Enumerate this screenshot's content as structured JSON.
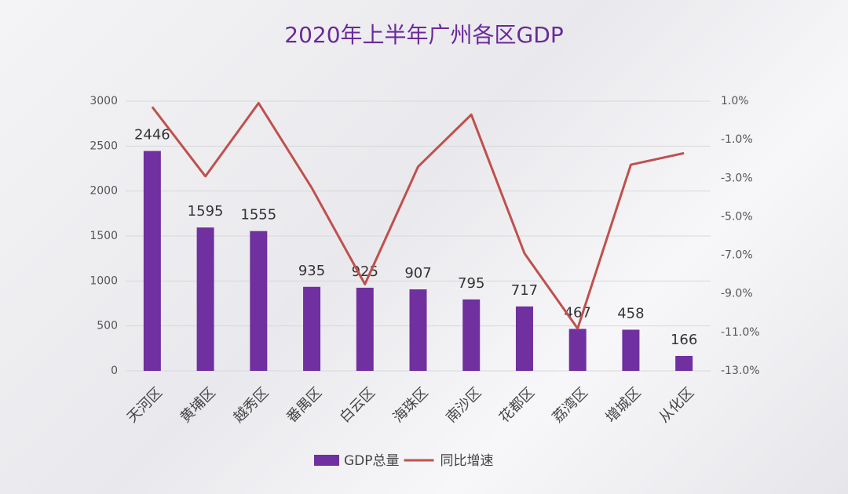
{
  "chart_data": {
    "type": "bar_line",
    "title": "2020年上半年广州各区GDP",
    "categories": [
      "天河区",
      "黄埔区",
      "越秀区",
      "番禺区",
      "白云区",
      "海珠区",
      "南沙区",
      "花都区",
      "荔湾区",
      "增城区",
      "从化区"
    ],
    "series": [
      {
        "name": "GDP总量",
        "type": "bar",
        "color": "#7030a0",
        "values": [
          2446,
          1595,
          1555,
          935,
          925,
          907,
          795,
          717,
          467,
          458,
          166
        ]
      },
      {
        "name": "同比增速",
        "type": "line",
        "axis": "y2",
        "color": "#c0504d",
        "values": [
          0.7,
          -2.9,
          0.9,
          -3.5,
          -8.5,
          -2.4,
          0.3,
          -6.9,
          -10.8,
          -2.3,
          -1.7
        ]
      }
    ],
    "ylim": [
      0,
      3000
    ],
    "yticks": [
      0,
      500,
      1000,
      1500,
      2000,
      2500,
      3000
    ],
    "y2lim": [
      -13,
      1
    ],
    "y2ticks": [
      {
        "value": 1,
        "label": "1.0%"
      },
      {
        "value": -1,
        "label": "-1.0%"
      },
      {
        "value": -3,
        "label": "-3.0%"
      },
      {
        "value": -5,
        "label": "-5.0%"
      },
      {
        "value": -7,
        "label": "-7.0%"
      },
      {
        "value": -9,
        "label": "-9.0%"
      },
      {
        "value": -11,
        "label": "-11.0%"
      },
      {
        "value": -13,
        "label": "-13.0%"
      }
    ],
    "grid": true,
    "legend": "bottom"
  }
}
